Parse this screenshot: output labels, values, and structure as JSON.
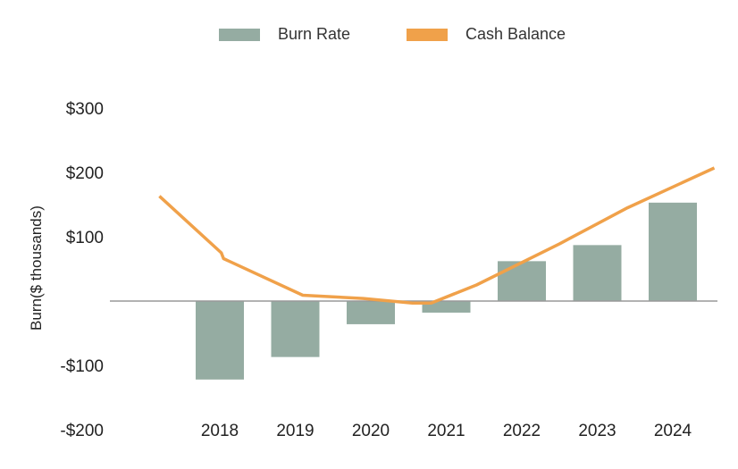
{
  "chart_data": {
    "type": "bar+line",
    "categories": [
      "2018",
      "2019",
      "2020",
      "2021",
      "2022",
      "2023",
      "2024"
    ],
    "series": [
      {
        "name": "Burn Rate",
        "type": "bar",
        "color": "#95ACA2",
        "values": [
          -122,
          -87,
          -36,
          -18,
          62,
          87,
          153
        ]
      },
      {
        "name": "Cash Balance",
        "type": "line",
        "color": "#F0A14A",
        "points": [
          {
            "x": 2017.2,
            "y": 163
          },
          {
            "x": 2018.02,
            "y": 75
          },
          {
            "x": 2018.05,
            "y": 66
          },
          {
            "x": 2019.1,
            "y": 9
          },
          {
            "x": 2019.9,
            "y": 4
          },
          {
            "x": 2020.55,
            "y": -3
          },
          {
            "x": 2020.8,
            "y": -3
          },
          {
            "x": 2021.4,
            "y": 25
          },
          {
            "x": 2022.5,
            "y": 89
          },
          {
            "x": 2023.4,
            "y": 145
          },
          {
            "x": 2024.55,
            "y": 207
          }
        ]
      }
    ],
    "title": "",
    "xlabel": "",
    "ylabel": "Burn($ thousands)",
    "ylim": [
      -200,
      300
    ],
    "yticks": [
      300,
      200,
      100,
      -100,
      -200
    ],
    "ytick_labels": [
      "$300",
      "$200",
      "$100",
      "-$100",
      "-$200"
    ],
    "zero_line": true,
    "grid": false,
    "legend_position": "top-center"
  }
}
